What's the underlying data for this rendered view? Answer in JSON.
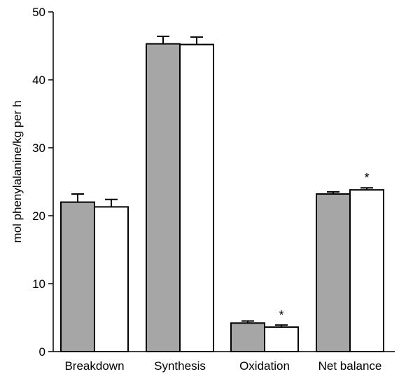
{
  "chart_data": {
    "type": "bar",
    "ylabel": "mol phenylalanine/kg per h",
    "xlabel": "",
    "title": "",
    "ylim": [
      0,
      50
    ],
    "yticks": [
      0,
      10,
      20,
      30,
      40,
      50
    ],
    "grid": false,
    "legend": "none",
    "categories": [
      "Breakdown",
      "Synthesis",
      "Oxidation",
      "Net balance"
    ],
    "series": [
      {
        "color": "#a6a6a6",
        "values": [
          22.0,
          45.3,
          4.2,
          23.2
        ],
        "errors": [
          1.2,
          1.1,
          0.3,
          0.3
        ]
      },
      {
        "color": "#ffffff",
        "values": [
          21.3,
          45.2,
          3.6,
          23.8
        ],
        "errors": [
          1.1,
          1.1,
          0.3,
          0.3
        ]
      }
    ],
    "annotations": [
      {
        "category": "Oxidation",
        "series": 1,
        "text": "*"
      },
      {
        "category": "Net balance",
        "series": 1,
        "text": "*"
      }
    ]
  }
}
